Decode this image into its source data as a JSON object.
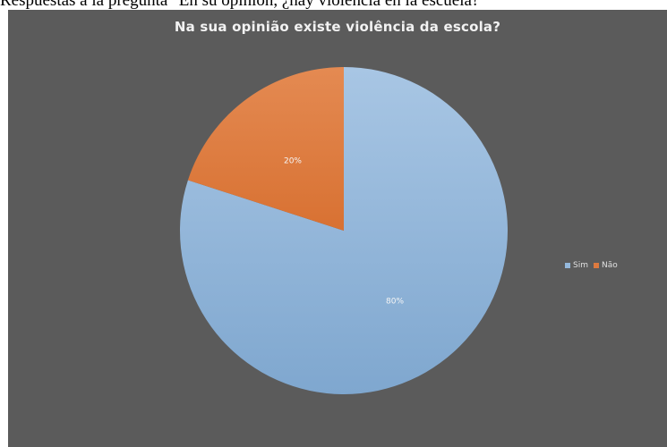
{
  "page_caption": "Respuestas a la pregunta \"En su opinión, ¿hay violencia en la escuela?\"",
  "chart_data": {
    "type": "pie",
    "title": "Na sua opinião existe violência da escola?",
    "categories": [
      "Sim",
      "Não"
    ],
    "values": [
      80,
      20
    ],
    "labels": [
      "80%",
      "20%"
    ],
    "colors": [
      "#94b8dc",
      "#dd7a3f"
    ],
    "legend_position": "right",
    "background": "#5b5b5b"
  }
}
